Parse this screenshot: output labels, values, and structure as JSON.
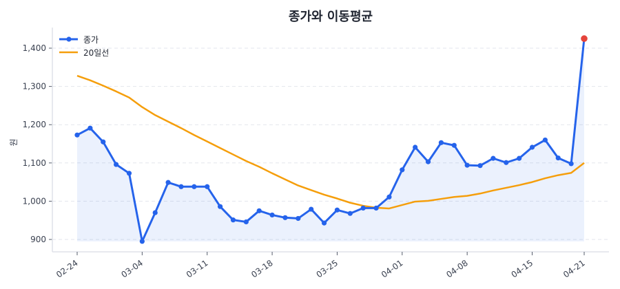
{
  "chart_data": {
    "type": "line",
    "title": "종가와 이동평균",
    "xlabel": "",
    "ylabel": "원",
    "ylim": [
      875,
      1450
    ],
    "yticks": [
      900,
      1000,
      1100,
      1200,
      1300,
      1400
    ],
    "ytick_labels": [
      "900",
      "1,000",
      "1,100",
      "1,200",
      "1,300",
      "1,400"
    ],
    "xtick_labels": [
      "02-24",
      "03-04",
      "03-11",
      "03-18",
      "03-25",
      "04-01",
      "04-08",
      "04-15",
      "04-21"
    ],
    "xtick_index": [
      0,
      5,
      10,
      15,
      20,
      25,
      30,
      35,
      39
    ],
    "grid": "horizontal dashed",
    "legend_position": "upper left",
    "x": [
      "02-24",
      "02-25",
      "02-26",
      "02-27",
      "02-28",
      "03-04",
      "03-05",
      "03-06",
      "03-07",
      "03-10",
      "03-11",
      "03-12",
      "03-13",
      "03-14",
      "03-17",
      "03-18",
      "03-19",
      "03-20",
      "03-21",
      "03-24",
      "03-25",
      "03-26",
      "03-27",
      "03-28",
      "03-31",
      "04-01",
      "04-02",
      "04-03",
      "04-04",
      "04-07",
      "04-08",
      "04-09",
      "04-10",
      "04-11",
      "04-14",
      "04-15",
      "04-16",
      "04-17",
      "04-18",
      "04-21"
    ],
    "series": [
      {
        "name": "종가",
        "color": "#2563eb",
        "marker": "circle",
        "fill": true,
        "values": [
          1173,
          1191,
          1155,
          1096,
          1073,
          895,
          970,
          1049,
          1038,
          1038,
          1038,
          986,
          951,
          946,
          975,
          964,
          957,
          955,
          979,
          943,
          977,
          968,
          982,
          982,
          1011,
          1082,
          1141,
          1103,
          1153,
          1146,
          1094,
          1093,
          1112,
          1101,
          1112,
          1141,
          1160,
          1113,
          1098,
          1425
        ]
      },
      {
        "name": "20일선",
        "color": "#f59e0b",
        "marker": "none",
        "fill": false,
        "values": [
          1328,
          1316,
          1302,
          1287,
          1271,
          1246,
          1225,
          1208,
          1191,
          1173,
          1156,
          1139,
          1122,
          1105,
          1090,
          1073,
          1057,
          1041,
          1029,
          1017,
          1007,
          996,
          988,
          983,
          981,
          990,
          999,
          1001,
          1006,
          1011,
          1014,
          1020,
          1028,
          1035,
          1042,
          1050,
          1060,
          1068,
          1074,
          1100
        ]
      }
    ],
    "highlight_last_point": {
      "color": "#e5443b",
      "value": 1425,
      "x": "04-21"
    }
  },
  "legend": {
    "items": [
      {
        "label": "종가",
        "color": "#2563eb"
      },
      {
        "label": "20일선",
        "color": "#f59e0b"
      }
    ]
  }
}
